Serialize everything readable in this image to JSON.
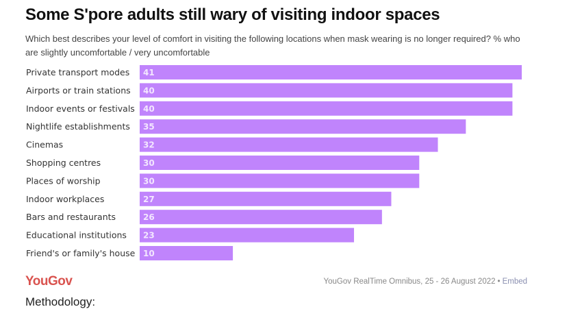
{
  "header": {
    "title": "Some S'pore adults still wary of visiting indoor spaces",
    "subtitle": "Which best describes your level of comfort in visiting the following locations when mask wearing is no longer required? % who are slightly uncomfortable / very uncomfortable"
  },
  "colors": {
    "bar": "#c084fc",
    "value_text": "#f3e6ff",
    "logo": "#d9534f"
  },
  "chart_data": {
    "type": "bar",
    "orientation": "horizontal",
    "title": "Some S'pore adults still wary of visiting indoor spaces",
    "subtitle": "Which best describes your level of comfort in visiting the following locations when mask wearing is no longer required? % who are slightly uncomfortable / very uncomfortable",
    "xlabel": "",
    "ylabel": "",
    "categories": [
      "Private transport modes",
      "Airports or train stations",
      "Indoor events or festivals",
      "Nightlife establishments",
      "Cinemas",
      "Shopping centres",
      "Places of worship",
      "Indoor workplaces",
      "Bars and restaurants",
      "Educational institutions",
      "Friend's or family's house"
    ],
    "values": [
      41,
      40,
      40,
      35,
      32,
      30,
      30,
      27,
      26,
      23,
      10
    ],
    "xlim": [
      0,
      41
    ],
    "grid": false,
    "legend": "none",
    "data_labels": "inside-left"
  },
  "footer": {
    "logo": "YouGov",
    "source": "YouGov RealTime Omnibus, 25 - 26 August 2022",
    "separator": "•",
    "embed_label": "Embed",
    "methodology": "Methodology:"
  }
}
